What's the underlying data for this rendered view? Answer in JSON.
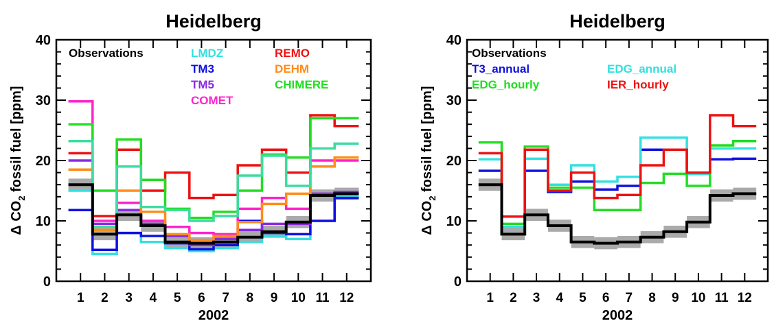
{
  "chart_data": [
    {
      "type": "line",
      "step": true,
      "title": "Heidelberg",
      "xlabel": "2002",
      "ylabel_parts": [
        "Δ CO",
        "2",
        " fossil fuel [ppm]"
      ],
      "xlim": [
        0,
        13
      ],
      "ylim": [
        0,
        40
      ],
      "x": [
        1,
        2,
        3,
        4,
        5,
        6,
        7,
        8,
        9,
        10,
        11,
        12
      ],
      "xticks": [
        "1",
        "2",
        "3",
        "4",
        "5",
        "6",
        "7",
        "8",
        "9",
        "10",
        "11",
        "12"
      ],
      "yticks": [
        0,
        10,
        20,
        30,
        40
      ],
      "observations": {
        "name": "Observations",
        "color": "#000000",
        "values": [
          16.0,
          7.8,
          11.0,
          9.2,
          6.5,
          6.3,
          6.5,
          7.3,
          8.2,
          9.8,
          14.2,
          14.5
        ],
        "uncertainty": 1.0
      },
      "series": [
        {
          "name": "LMDZ",
          "color": "#33e0e0",
          "values": [
            15.0,
            4.5,
            8.0,
            6.5,
            5.5,
            5.0,
            5.5,
            6.5,
            7.5,
            7.0,
            10.0,
            14.0
          ]
        },
        {
          "name": "TM3",
          "color": "#1010e0",
          "values": [
            11.8,
            5.2,
            8.0,
            7.5,
            6.3,
            5.3,
            6.0,
            10.0,
            8.0,
            7.8,
            10.0,
            13.8
          ]
        },
        {
          "name": "TM5",
          "color": "#8a2be2",
          "values": [
            20.0,
            9.5,
            11.8,
            9.5,
            7.5,
            6.0,
            7.0,
            8.5,
            9.5,
            9.5,
            14.5,
            14.8
          ]
        },
        {
          "name": "COMET",
          "color": "#ff22cc",
          "values": [
            29.8,
            10.0,
            13.0,
            10.0,
            9.0,
            8.0,
            7.8,
            12.0,
            13.8,
            12.0,
            20.0,
            20.0
          ]
        },
        {
          "name": "REMO",
          "color": "#ee1111",
          "values": [
            21.2,
            10.8,
            21.8,
            15.0,
            18.0,
            13.8,
            14.3,
            19.2,
            21.8,
            18.0,
            27.5,
            25.7
          ]
        },
        {
          "name": "DEHM",
          "color": "#ff8c1a",
          "values": [
            18.5,
            8.5,
            15.0,
            11.5,
            7.8,
            6.8,
            7.5,
            9.8,
            12.8,
            14.5,
            19.0,
            20.5
          ]
        },
        {
          "name": "CHIMERE",
          "color": "#22dd22",
          "values": [
            26.0,
            15.0,
            23.5,
            16.8,
            12.0,
            10.5,
            11.5,
            15.0,
            21.0,
            20.5,
            27.0,
            27.0
          ]
        },
        {
          "name": "",
          "color": "#3ddca0",
          "values": [
            23.2,
            9.0,
            19.0,
            12.3,
            11.8,
            10.0,
            10.8,
            17.5,
            20.8,
            15.8,
            22.0,
            22.8
          ]
        }
      ],
      "legend": [
        {
          "name": "Observations",
          "color": "#000000",
          "col": 0,
          "row": 0
        },
        {
          "name": "LMDZ",
          "color": "#33e0e0",
          "col": 1,
          "row": 0
        },
        {
          "name": "TM3",
          "color": "#1010e0",
          "col": 1,
          "row": 1
        },
        {
          "name": "TM5",
          "color": "#8a2be2",
          "col": 1,
          "row": 2
        },
        {
          "name": "COMET",
          "color": "#ff22cc",
          "col": 1,
          "row": 3
        },
        {
          "name": "REMO",
          "color": "#ee1111",
          "col": 2,
          "row": 0
        },
        {
          "name": "DEHM",
          "color": "#ff8c1a",
          "col": 2,
          "row": 1
        },
        {
          "name": "CHIMERE",
          "color": "#22dd22",
          "col": 2,
          "row": 2
        }
      ],
      "legend_placement": "top-left, three columns",
      "grid": false
    },
    {
      "type": "line",
      "step": true,
      "title": "Heidelberg",
      "xlabel": "2002",
      "ylabel_parts": [
        "Δ CO",
        "2",
        " fossil fuel [ppm]"
      ],
      "xlim": [
        0,
        13
      ],
      "ylim": [
        0,
        40
      ],
      "x": [
        1,
        2,
        3,
        4,
        5,
        6,
        7,
        8,
        9,
        10,
        11,
        12
      ],
      "xticks": [
        "1",
        "2",
        "3",
        "4",
        "5",
        "6",
        "7",
        "8",
        "9",
        "10",
        "11",
        "12"
      ],
      "yticks": [
        0,
        10,
        20,
        30,
        40
      ],
      "observations": {
        "name": "Observations",
        "color": "#000000",
        "values": [
          16.0,
          7.8,
          11.0,
          9.2,
          6.5,
          6.3,
          6.5,
          7.3,
          8.2,
          9.8,
          14.2,
          14.5
        ],
        "uncertainty": 1.0
      },
      "series": [
        {
          "name": "T3_annual",
          "color": "#1010e0",
          "values": [
            18.3,
            7.8,
            18.3,
            14.8,
            16.5,
            15.2,
            15.8,
            21.8,
            21.8,
            17.8,
            20.2,
            20.3
          ]
        },
        {
          "name": "EDG_annual",
          "color": "#33e0e0",
          "values": [
            20.2,
            9.0,
            20.3,
            16.0,
            19.2,
            16.5,
            17.3,
            23.8,
            23.8,
            17.8,
            22.0,
            22.0
          ]
        },
        {
          "name": "EDG_hourly",
          "color": "#22dd22",
          "values": [
            23.0,
            9.5,
            22.3,
            15.5,
            15.5,
            11.8,
            11.8,
            16.3,
            17.8,
            15.8,
            22.5,
            23.2
          ]
        },
        {
          "name": "IER_hourly",
          "color": "#ee1111",
          "values": [
            21.2,
            10.7,
            21.8,
            15.0,
            18.0,
            13.8,
            14.3,
            19.2,
            21.8,
            18.0,
            27.5,
            25.7
          ]
        }
      ],
      "legend": [
        {
          "name": "Observations",
          "color": "#000000",
          "col": 0,
          "row": 0
        },
        {
          "name": "T3_annual",
          "color": "#1010e0",
          "col": 0,
          "row": 1
        },
        {
          "name": "EDG_hourly",
          "color": "#22dd22",
          "col": 0,
          "row": 2
        },
        {
          "name": "EDG_annual",
          "color": "#33e0e0",
          "col": 1,
          "row": 1
        },
        {
          "name": "IER_hourly",
          "color": "#ee1111",
          "col": 1,
          "row": 2
        }
      ],
      "legend_placement": "top-left, two columns",
      "grid": false
    }
  ]
}
